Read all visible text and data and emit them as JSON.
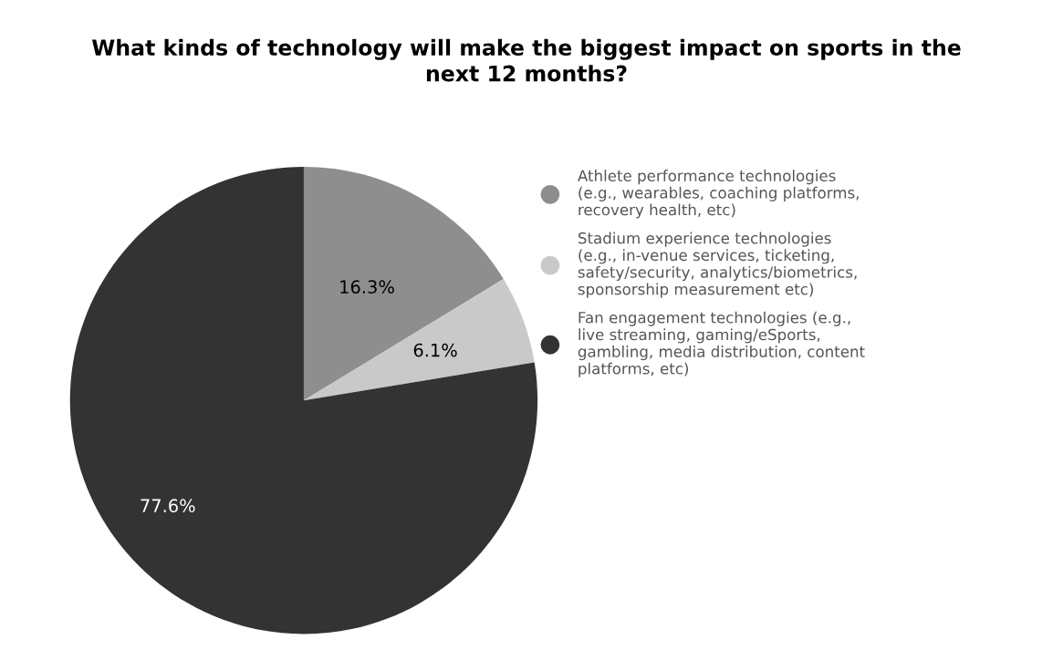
{
  "chart_data": {
    "type": "pie",
    "title": "What kinds of technology will make the biggest impact on sports in the\nnext 12 months?",
    "categories": [
      "Athlete performance technologies\n(e.g., wearables, coaching platforms,\nrecovery health, etc)",
      "Stadium experience technologies\n(e.g., in-venue services, ticketing,\nsafety/security, analytics/biometrics,\nsponsorship measurement etc)",
      "Fan engagement technologies (e.g.,\nlive streaming, gaming/eSports,\ngambling, media distribution, content\nplatforms, etc)"
    ],
    "values": [
      16.3,
      6.1,
      77.6
    ],
    "value_labels": [
      "16.3%",
      "6.1%",
      "77.6%"
    ],
    "colors": [
      "#8e8e8e",
      "#c9c9c9",
      "#333333"
    ],
    "legend": "right"
  }
}
